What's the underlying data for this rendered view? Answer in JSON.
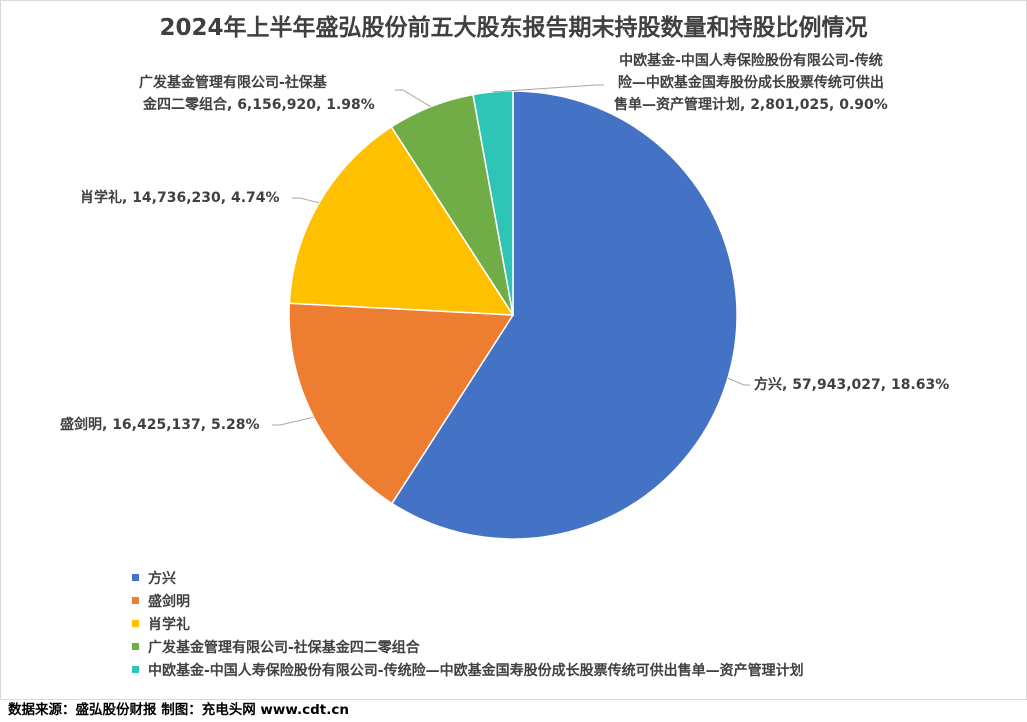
{
  "chart_data": {
    "type": "pie",
    "title": "2024年上半年盛弘股份前五大股东报告期末持股数量和持股比例情况",
    "start_angle_deg": 0,
    "direction": "clockwise",
    "legend_position": "bottom-left",
    "slices": [
      {
        "name": "方兴",
        "value": 57943027,
        "percent": "18.63%",
        "value_label": "57,943,027",
        "color": "#4472C4",
        "label_text": "方兴, 57,943,027, 18.63%"
      },
      {
        "name": "盛剑明",
        "value": 16425137,
        "percent": "5.28%",
        "value_label": "16,425,137",
        "color": "#ED7D31",
        "label_text": "盛剑明, 16,425,137, 5.28%"
      },
      {
        "name": "肖学礼",
        "value": 14736230,
        "percent": "4.74%",
        "value_label": "14,736,230",
        "color": "#FFC000",
        "label_text": "肖学礼, 14,736,230, 4.74%"
      },
      {
        "name": "广发基金管理有限公司-社保基金四二零组合",
        "value": 6156920,
        "percent": "1.98%",
        "value_label": "6,156,920",
        "color": "#70AD47",
        "label_lines": [
          "广发基金管理有限公司-社保基",
          "金四二零组合, 6,156,920, 1.98%"
        ]
      },
      {
        "name": "中欧基金-中国人寿保险股份有限公司-传统险—中欧基金国寿股份成长股票传统可供出售单—资产管理计划",
        "value": 2801025,
        "percent": "0.90%",
        "value_label": "2,801,025",
        "color": "#2EC4B6",
        "label_lines": [
          "中欧基金-中国人寿保险股份有限公司-传统",
          "险—中欧基金国寿股份成长股票传统可供出",
          "售单—资产管理计划, 2,801,025, 0.90%"
        ]
      }
    ]
  },
  "footer": {
    "text": "数据来源：盛弘股份财报  制图：充电头网 www.cdt.cn"
  }
}
